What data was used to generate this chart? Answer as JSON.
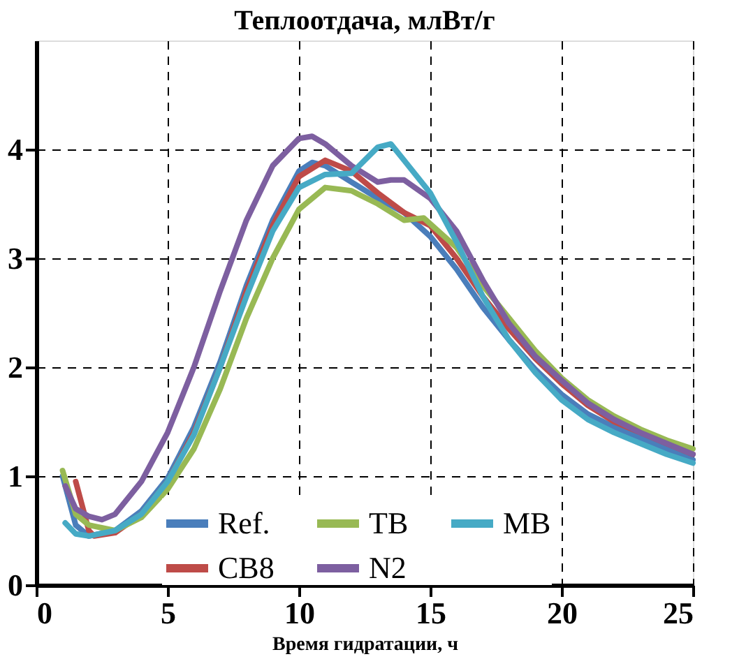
{
  "chart_data": {
    "type": "line",
    "title": "Теплоотдача, млВт/г",
    "xlabel": "Время гидратации, ч",
    "xlim": [
      0,
      25
    ],
    "xticks": [
      0,
      5,
      10,
      15,
      20,
      25
    ],
    "ylim": [
      0,
      5
    ],
    "yticks": [
      0,
      1,
      2,
      3,
      4
    ],
    "grid": true,
    "legend": "bottom",
    "line_style": "solid",
    "series": [
      {
        "name": "Ref.",
        "color": "#4a7ebb",
        "x": [
          1,
          1.5,
          2,
          3,
          4,
          5,
          6,
          7,
          8,
          9,
          10,
          10.5,
          11,
          12,
          13,
          14,
          15,
          16,
          17,
          18,
          19,
          20,
          21,
          22,
          23,
          24,
          25
        ],
        "values": [
          1.0,
          0.55,
          0.45,
          0.5,
          0.68,
          0.98,
          1.45,
          2.05,
          2.75,
          3.35,
          3.8,
          3.88,
          3.85,
          3.7,
          3.55,
          3.42,
          3.2,
          2.9,
          2.55,
          2.25,
          1.98,
          1.75,
          1.57,
          1.45,
          1.35,
          1.25,
          1.15
        ]
      },
      {
        "name": "CB8",
        "color": "#be4b48",
        "x": [
          1.5,
          2,
          2.2,
          3,
          4,
          5,
          6,
          7,
          8,
          9,
          10,
          11,
          12,
          13,
          14,
          15,
          16,
          17,
          18,
          19,
          20,
          21,
          22,
          23,
          24,
          25
        ],
        "values": [
          0.95,
          0.5,
          0.45,
          0.48,
          0.65,
          0.95,
          1.4,
          2.0,
          2.7,
          3.3,
          3.75,
          3.9,
          3.8,
          3.6,
          3.42,
          3.3,
          3.0,
          2.65,
          2.35,
          2.08,
          1.85,
          1.65,
          1.5,
          1.4,
          1.3,
          1.2
        ]
      },
      {
        "name": "TB",
        "color": "#98b954",
        "x": [
          1,
          1.5,
          2,
          3,
          4,
          5,
          6,
          7,
          8,
          9,
          10,
          11,
          12,
          13,
          14,
          14.75,
          16,
          17,
          18,
          19,
          20,
          21,
          22,
          23,
          24,
          25
        ],
        "values": [
          1.05,
          0.65,
          0.55,
          0.5,
          0.62,
          0.88,
          1.25,
          1.8,
          2.45,
          3.0,
          3.45,
          3.65,
          3.62,
          3.5,
          3.35,
          3.37,
          3.1,
          2.75,
          2.45,
          2.15,
          1.9,
          1.7,
          1.55,
          1.43,
          1.33,
          1.25
        ]
      },
      {
        "name": "N2",
        "color": "#7d5fa0",
        "x": [
          1.1,
          1.5,
          2,
          2.5,
          3,
          4,
          5,
          6,
          7,
          8,
          9,
          10,
          10.5,
          11,
          12,
          13,
          13.5,
          14,
          15,
          16,
          17,
          18,
          19,
          20,
          21,
          22,
          23,
          24,
          25
        ],
        "values": [
          0.91,
          0.7,
          0.63,
          0.6,
          0.65,
          0.95,
          1.4,
          2.0,
          2.7,
          3.35,
          3.85,
          4.1,
          4.12,
          4.05,
          3.85,
          3.7,
          3.72,
          3.72,
          3.55,
          3.25,
          2.8,
          2.4,
          2.1,
          1.88,
          1.67,
          1.52,
          1.4,
          1.3,
          1.2
        ]
      },
      {
        "name": "MB",
        "color": "#46aac5",
        "x": [
          1.1,
          1.5,
          2,
          3,
          4,
          5,
          6,
          7,
          8,
          9,
          10,
          11,
          12,
          12.5,
          13,
          13.5,
          14,
          15,
          16,
          17,
          18,
          19,
          20,
          21,
          22,
          23,
          24,
          25
        ],
        "values": [
          0.57,
          0.47,
          0.45,
          0.5,
          0.65,
          0.95,
          1.38,
          2.0,
          2.65,
          3.25,
          3.65,
          3.77,
          3.78,
          3.9,
          4.02,
          4.05,
          3.9,
          3.6,
          3.15,
          2.65,
          2.25,
          1.95,
          1.7,
          1.52,
          1.4,
          1.3,
          1.2,
          1.12
        ]
      }
    ]
  }
}
